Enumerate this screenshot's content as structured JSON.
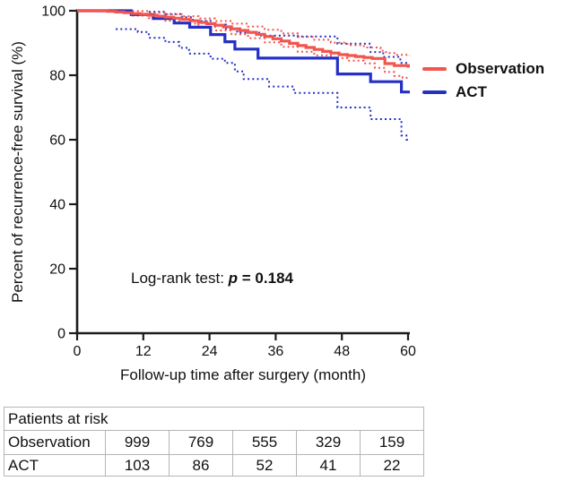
{
  "figure": {
    "y_axis_label": "Percent of recurrence-free survival (%)",
    "x_axis_label": "Follow-up time after surgery (month)",
    "annotation": {
      "prefix": "Log-rank test: ",
      "stat_symbol": "p",
      "stat_value": " = 0.184"
    },
    "legend": [
      {
        "label": "Observation",
        "color": "#f2554d"
      },
      {
        "label": "ACT",
        "color": "#2530c4"
      }
    ]
  },
  "risk_table": {
    "title": "Patients at risk",
    "rows": [
      {
        "label": "Observation",
        "values": [
          "999",
          "769",
          "555",
          "329",
          "159"
        ]
      },
      {
        "label": "ACT",
        "values": [
          "103",
          "86",
          "52",
          "41",
          "22"
        ]
      }
    ]
  },
  "chart_data": {
    "type": "line",
    "subtype": "kaplan-meier-step",
    "title": "",
    "xlabel": "Follow-up time after surgery (month)",
    "ylabel": "Percent of recurrence-free survival (%)",
    "xlim": [
      0,
      60
    ],
    "ylim": [
      0,
      100
    ],
    "x_ticks": [
      0,
      12,
      24,
      36,
      48,
      60
    ],
    "y_ticks": [
      0,
      20,
      40,
      60,
      80,
      100
    ],
    "grid": false,
    "legend_position": "right",
    "annotation": "Log-rank test: p = 0.184",
    "axis_color": "#1c1c1c",
    "series": [
      {
        "name": "ACT 95% CI lower",
        "color": "#2530c4",
        "style": "dotted",
        "points": [
          [
            7,
            94.3
          ],
          [
            11,
            93.4
          ],
          [
            13,
            91.6
          ],
          [
            16,
            90.3
          ],
          [
            18.5,
            88.5
          ],
          [
            20.3,
            86.7
          ],
          [
            24.2,
            85.1
          ],
          [
            26.8,
            83.8
          ],
          [
            28.6,
            81.2
          ],
          [
            30.2,
            78.8
          ],
          [
            34.8,
            76.5
          ],
          [
            39.3,
            74.5
          ],
          [
            47.2,
            70.0
          ],
          [
            53.2,
            66.4
          ],
          [
            58.8,
            61.3
          ],
          [
            59.7,
            60.0
          ],
          [
            60,
            60.0
          ]
        ]
      },
      {
        "name": "ACT 95% CI upper",
        "color": "#2530c4",
        "style": "dotted",
        "points": [
          [
            13,
            99.7
          ],
          [
            16,
            99.0
          ],
          [
            19,
            98.0
          ],
          [
            21,
            96.9
          ],
          [
            24.5,
            95.7
          ],
          [
            27,
            94.4
          ],
          [
            29,
            93.2
          ],
          [
            33,
            92.3
          ],
          [
            40,
            92.0
          ],
          [
            47.2,
            89.8
          ],
          [
            53.2,
            87.2
          ],
          [
            55.5,
            85.7
          ],
          [
            58.6,
            83.8
          ],
          [
            60,
            83.8
          ]
        ]
      },
      {
        "name": "Observation 95% CI lower",
        "color": "#f2554d",
        "style": "dotted",
        "points": [
          [
            10,
            98.5
          ],
          [
            13,
            97.7
          ],
          [
            16,
            96.9
          ],
          [
            19,
            96.0
          ],
          [
            22,
            95.0
          ],
          [
            25,
            93.9
          ],
          [
            28,
            92.7
          ],
          [
            31,
            91.5
          ],
          [
            34,
            90.2
          ],
          [
            37,
            88.8
          ],
          [
            40,
            87.3
          ],
          [
            43,
            86.2
          ],
          [
            46,
            85.3
          ],
          [
            49,
            84.5
          ],
          [
            52,
            83.7
          ],
          [
            54,
            82.3
          ],
          [
            55.8,
            81.0
          ],
          [
            57.5,
            79.8
          ],
          [
            59,
            79.2
          ],
          [
            60,
            79.2
          ]
        ]
      },
      {
        "name": "Observation 95% CI upper",
        "color": "#f2554d",
        "style": "dotted",
        "points": [
          [
            10,
            99.9
          ],
          [
            13,
            99.4
          ],
          [
            16,
            98.9
          ],
          [
            19,
            98.3
          ],
          [
            22,
            97.6
          ],
          [
            25,
            96.8
          ],
          [
            28,
            96.0
          ],
          [
            31,
            95.1
          ],
          [
            34,
            94.1
          ],
          [
            37,
            93.0
          ],
          [
            40,
            91.9
          ],
          [
            43,
            91.0
          ],
          [
            46,
            90.1
          ],
          [
            49,
            89.3
          ],
          [
            52,
            88.6
          ],
          [
            55,
            87.6
          ],
          [
            56,
            86.9
          ],
          [
            58,
            86.3
          ],
          [
            60,
            86.1
          ]
        ]
      },
      {
        "name": "ACT",
        "color": "#2530c4",
        "style": "solid",
        "points": [
          [
            0,
            100
          ],
          [
            9.8,
            98.8
          ],
          [
            13.8,
            97.6
          ],
          [
            17.6,
            96.2
          ],
          [
            20.4,
            94.9
          ],
          [
            24.2,
            92.6
          ],
          [
            26.8,
            90.4
          ],
          [
            28.6,
            88.1
          ],
          [
            32.8,
            85.3
          ],
          [
            47.2,
            80.4
          ],
          [
            53.2,
            78.0
          ],
          [
            58.8,
            74.8
          ],
          [
            60,
            74.8
          ]
        ]
      },
      {
        "name": "Observation",
        "color": "#f2554d",
        "style": "solid",
        "points": [
          [
            0,
            100
          ],
          [
            5.5,
            99.8
          ],
          [
            7,
            99.6
          ],
          [
            8.5,
            99.4
          ],
          [
            10,
            99.1
          ],
          [
            11.5,
            98.9
          ],
          [
            13,
            98.6
          ],
          [
            14.5,
            98.3
          ],
          [
            16,
            98.0
          ],
          [
            17.5,
            97.7
          ],
          [
            19,
            97.3
          ],
          [
            20.5,
            96.9
          ],
          [
            22,
            96.4
          ],
          [
            23.5,
            96.0
          ],
          [
            25,
            95.5
          ],
          [
            26.5,
            95.0
          ],
          [
            28,
            94.4
          ],
          [
            29.5,
            93.9
          ],
          [
            31,
            93.3
          ],
          [
            32.5,
            92.7
          ],
          [
            34,
            92.0
          ],
          [
            35.5,
            91.3
          ],
          [
            37,
            90.6
          ],
          [
            38.5,
            89.9
          ],
          [
            40,
            89.2
          ],
          [
            41.5,
            88.6
          ],
          [
            43,
            88.0
          ],
          [
            44.5,
            87.4
          ],
          [
            46,
            86.9
          ],
          [
            47.5,
            86.4
          ],
          [
            49,
            86.1
          ],
          [
            50.5,
            85.8
          ],
          [
            52,
            85.5
          ],
          [
            53.5,
            85.2
          ],
          [
            55.8,
            83.6
          ],
          [
            57.5,
            83.0
          ],
          [
            60,
            82.8
          ]
        ]
      }
    ]
  }
}
